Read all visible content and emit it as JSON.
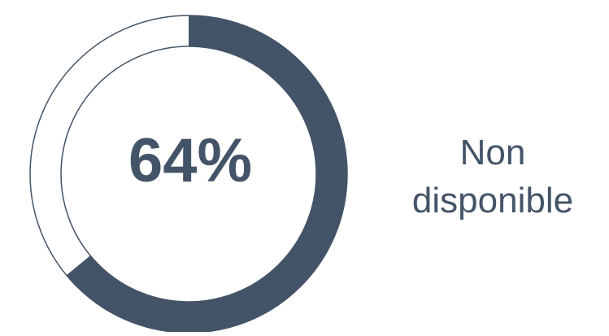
{
  "chart_data": {
    "type": "pie",
    "variant": "donut",
    "value": 64,
    "unit": "%",
    "center_label": "64%",
    "slices": [
      {
        "label": "",
        "value": 64
      },
      {
        "label": "",
        "value": 36
      }
    ]
  },
  "side_label": {
    "line1": "Non",
    "line2": "disponible"
  },
  "colors": {
    "filled": "#445468",
    "outline": "#445468",
    "text": "#445468",
    "background": "#ffffff"
  }
}
